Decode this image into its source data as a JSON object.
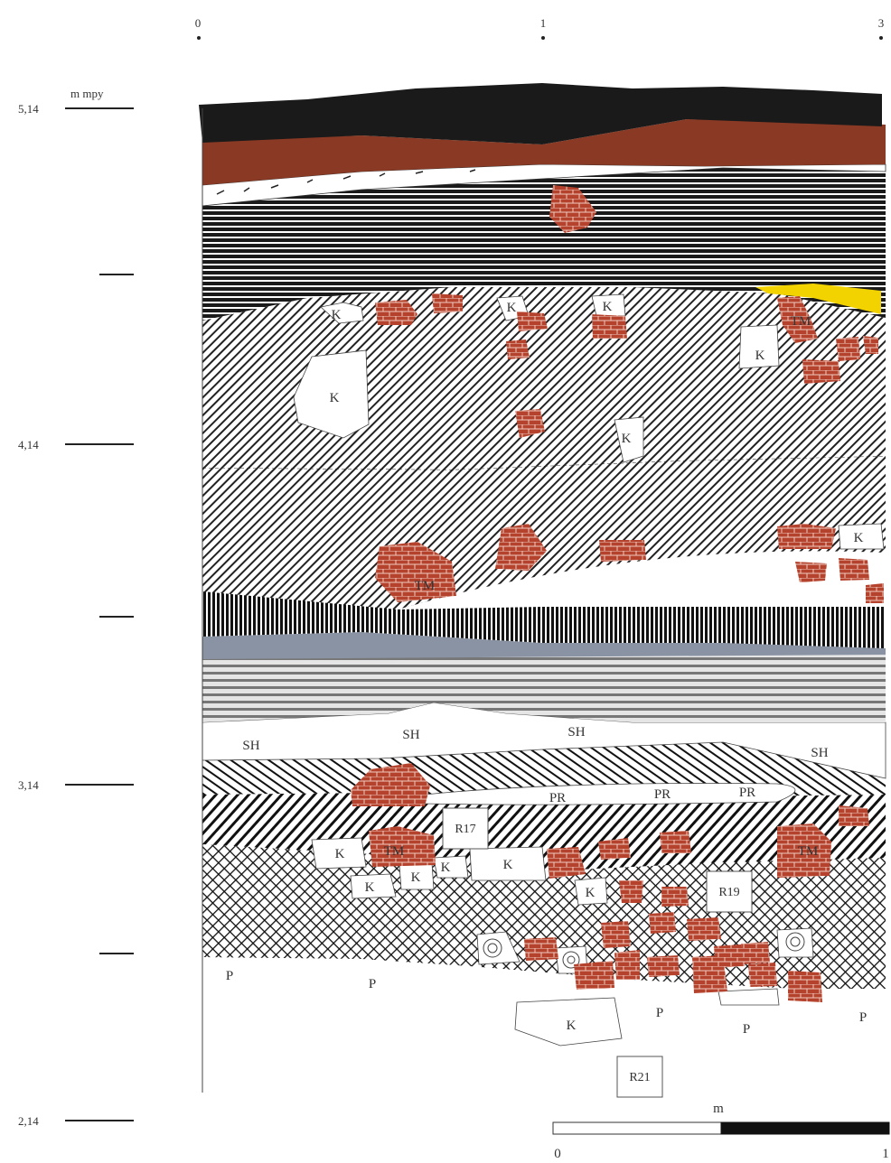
{
  "top_axis": [
    {
      "label": "0"
    },
    {
      "label": "1"
    },
    {
      "label": "3"
    }
  ],
  "depth_axis": {
    "unit": "m mpy",
    "ticks": [
      {
        "label": "5,14"
      },
      {
        "label": ""
      },
      {
        "label": "4,14"
      },
      {
        "label": ""
      },
      {
        "label": "3,14"
      },
      {
        "label": ""
      },
      {
        "label": "2,14"
      }
    ]
  },
  "scale_bar": {
    "unit": "m",
    "start": "0",
    "end": "1"
  },
  "labels": {
    "K": "K",
    "TM": "TM",
    "SH": "SH",
    "PR": "PR",
    "P": "P"
  },
  "boxes": {
    "r17": "R17",
    "r19": "R19",
    "r21": "R21"
  },
  "colors": {
    "topsoil": "#1a1a1a",
    "brown": "#8a3a24",
    "brick": "#b5422c",
    "yellow": "#f2d300",
    "blue_gray": "#8a93a3"
  }
}
